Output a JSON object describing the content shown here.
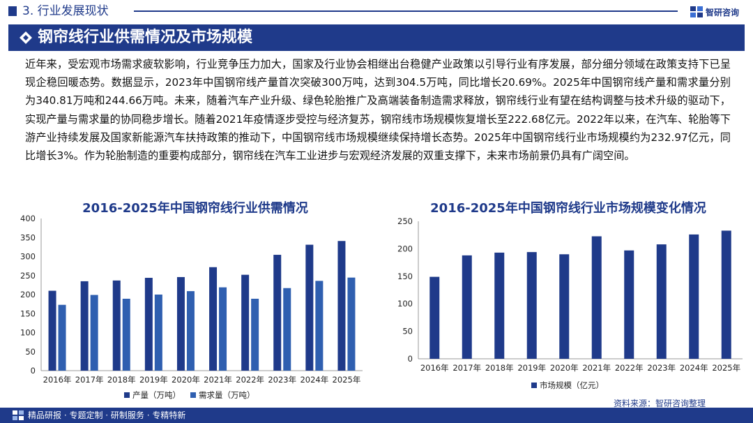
{
  "header": {
    "section_title": "3. 行业发展现状",
    "brand_name": "智研咨询",
    "banner_title": "钢帘线行业供需情况及市场规模"
  },
  "body_text": "近年来，受宏观市场需求疲软影响，行业竞争压力加大，国家及行业协会相继出台稳健产业政策以引导行业有序发展，部分细分领域在政策支持下已呈现企稳回暖态势。数据显示，2023年中国钢帘线产量首次突破300万吨，达到304.5万吨，同比增长20.69%。2025年中国钢帘线产量和需求量分别为340.81万吨和244.66万吨。未来，随着汽车产业升级、绿色轮胎推广及高端装备制造需求释放，钢帘线行业有望在结构调整与技术升级的驱动下，实现产量与需求量的协同稳步增长。随着2021年疫情逐步受控与经济复苏，钢帘线市场规模恢复增长至222.68亿元。2022年以来，在汽车、轮胎等下游产业持续发展及国家新能源汽车扶持政策的推动下，中国钢帘线市场规模继续保持增长态势。2025年中国钢帘线行业市场规模约为232.97亿元，同比增长3%。作为轮胎制造的重要构成部分，钢帘线在汽车工业进步与宏观经济发展的双重支撑下，未来市场前景仍具有广阔空间。",
  "chart_data": [
    {
      "type": "bar",
      "title": "2016-2025年中国钢帘线行业供需情况",
      "categories": [
        "2016年",
        "2017年",
        "2018年",
        "2019年",
        "2020年",
        "2021年",
        "2022年",
        "2023年",
        "2024年",
        "2025年"
      ],
      "series": [
        {
          "name": "产量（万吨）",
          "color": "#1f3a8a",
          "values": [
            210,
            235,
            237,
            244,
            246,
            272,
            252,
            304.5,
            331,
            340.81
          ]
        },
        {
          "name": "需求量（万吨）",
          "color": "#2f5fb0",
          "values": [
            173,
            199,
            189,
            200,
            209,
            219,
            189,
            217,
            236,
            244.66
          ]
        }
      ],
      "yticks": [
        "0",
        "50",
        "100",
        "150",
        "200",
        "250",
        "300",
        "350",
        "400"
      ],
      "ylim": [
        0,
        400
      ],
      "legend_position": "bottom"
    },
    {
      "type": "bar",
      "title": "2016-2025年中国钢帘线行业市场规模变化情况",
      "categories": [
        "2016年",
        "2017年",
        "2018年",
        "2019年",
        "2020年",
        "2021年",
        "2022年",
        "2023年",
        "2024年",
        "2025年"
      ],
      "series": [
        {
          "name": "市场规模（亿元）",
          "color": "#1f3a8a",
          "values": [
            149,
            188,
            193,
            194,
            190,
            222.68,
            197,
            208,
            226,
            232.97
          ]
        }
      ],
      "yticks": [
        "0",
        "50",
        "100",
        "150",
        "200",
        "250"
      ],
      "ylim": [
        0,
        250
      ],
      "legend_position": "bottom"
    }
  ],
  "footer": {
    "tagline": "精品研报 · 专题定制 · 研制服务 · 专精特新",
    "source": "资料来源：智研咨询整理"
  }
}
